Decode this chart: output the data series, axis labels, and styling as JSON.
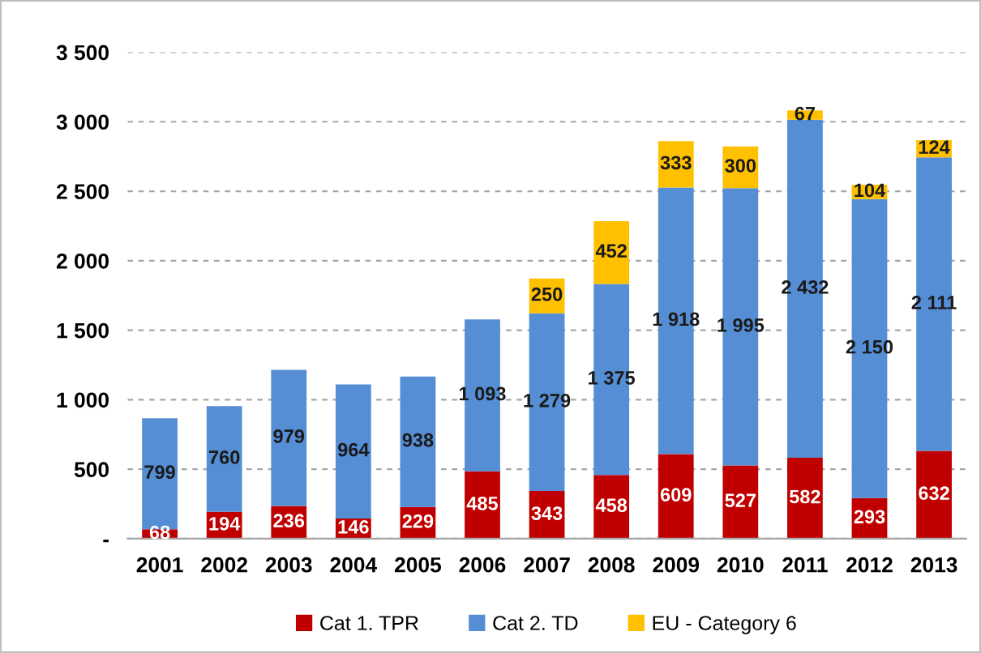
{
  "chart_data": {
    "type": "bar",
    "stacked": true,
    "categories": [
      "2001",
      "2002",
      "2003",
      "2004",
      "2005",
      "2006",
      "2007",
      "2008",
      "2009",
      "2010",
      "2011",
      "2012",
      "2013"
    ],
    "series": [
      {
        "name": "Cat 1. TPR",
        "color": "#c00000",
        "values": [
          68,
          194,
          236,
          146,
          229,
          485,
          343,
          458,
          609,
          527,
          582,
          293,
          632
        ],
        "value_labels": [
          "68",
          "194",
          "236",
          "146",
          "229",
          "485",
          "343",
          "458",
          "609",
          "527",
          "582",
          "293",
          "632"
        ]
      },
      {
        "name": "Cat 2. TD",
        "color": "#558ed5",
        "values": [
          799,
          760,
          979,
          964,
          938,
          1093,
          1279,
          1375,
          1918,
          1995,
          2432,
          2150,
          2111
        ],
        "value_labels": [
          "799",
          "760",
          "979",
          "964",
          "938",
          "1 093",
          "1 279",
          "1 375",
          "1 918",
          "1 995",
          "2 432",
          "2 150",
          "2 111"
        ]
      },
      {
        "name": "EU - Category 6",
        "color": "#ffc000",
        "values": [
          null,
          null,
          null,
          null,
          null,
          null,
          250,
          452,
          333,
          300,
          67,
          104,
          124
        ],
        "value_labels": [
          null,
          null,
          null,
          null,
          null,
          null,
          "250",
          "452",
          "333",
          "300",
          "67",
          "104",
          "124"
        ]
      }
    ],
    "ylim": [
      0,
      3500
    ],
    "yticks": [
      {
        "value": 0,
        "label": "-"
      },
      500,
      {
        "value": 1000,
        "label": "1 000"
      },
      {
        "value": 1500,
        "label": "1 500"
      },
      {
        "value": 2000,
        "label": "2 000"
      },
      {
        "value": 2500,
        "label": "2 500"
      },
      {
        "value": 3000,
        "label": "3 000"
      },
      {
        "value": 3500,
        "label": "3 500"
      }
    ],
    "grid": "y",
    "legend": "bottom"
  }
}
